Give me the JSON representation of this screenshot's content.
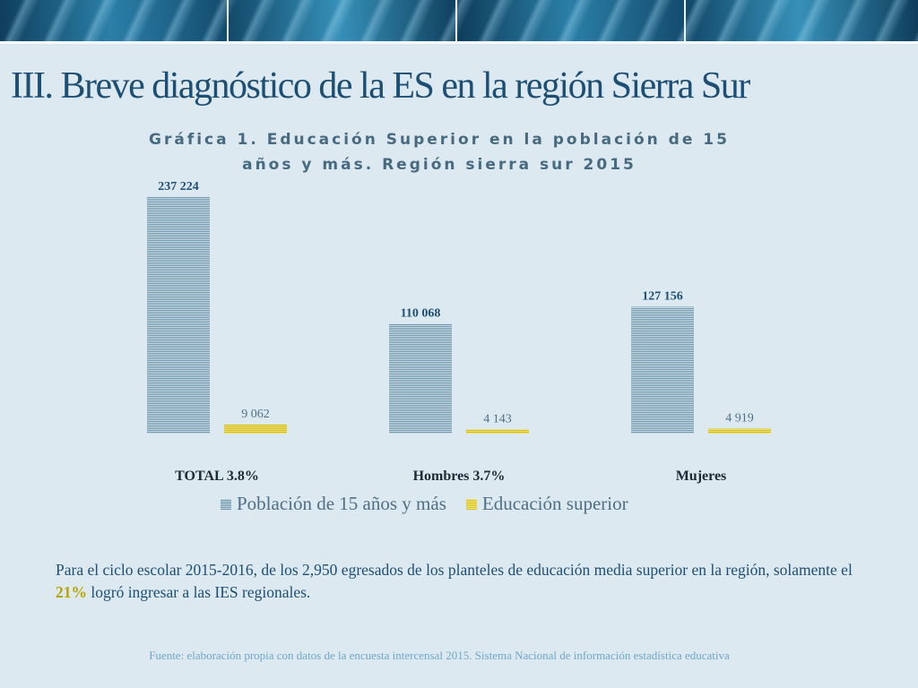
{
  "slide": {
    "title": "III. Breve diagnóstico de la ES en la región Sierra Sur"
  },
  "chart_data": {
    "type": "bar",
    "title_line1": "Gráfica 1. Educación Superior en la población de 15",
    "title_line2": "años y más. Región sierra sur 2015",
    "categories": [
      "TOTAL 3.8%",
      "Hombres 3.7%",
      "Mujeres"
    ],
    "series": [
      {
        "name": "Población de 15 años y más",
        "values": [
          237224,
          110068,
          127156
        ],
        "labels": [
          "237 224",
          "110 068",
          "127 156"
        ],
        "color": "#6c95aa"
      },
      {
        "name": "Educación superior",
        "values": [
          9062,
          4143,
          4919
        ],
        "labels": [
          "9 062",
          "4 143",
          "4 919"
        ],
        "color": "#d8c21a"
      }
    ],
    "ylim": [
      0,
      237224
    ],
    "grid": false,
    "legend": "bottom"
  },
  "text": {
    "para_before": "Para el ciclo escolar 2015-2016, de los 2,950 egresados de los planteles de educación media superior en la región, solamente el ",
    "para_highlight": "21%",
    "para_after": " logró ingresar a las IES regionales.",
    "source": "Fuente: elaboración propia con datos de la encuesta intercensal 2015. Sistema Nacional de información estadística educativa"
  }
}
